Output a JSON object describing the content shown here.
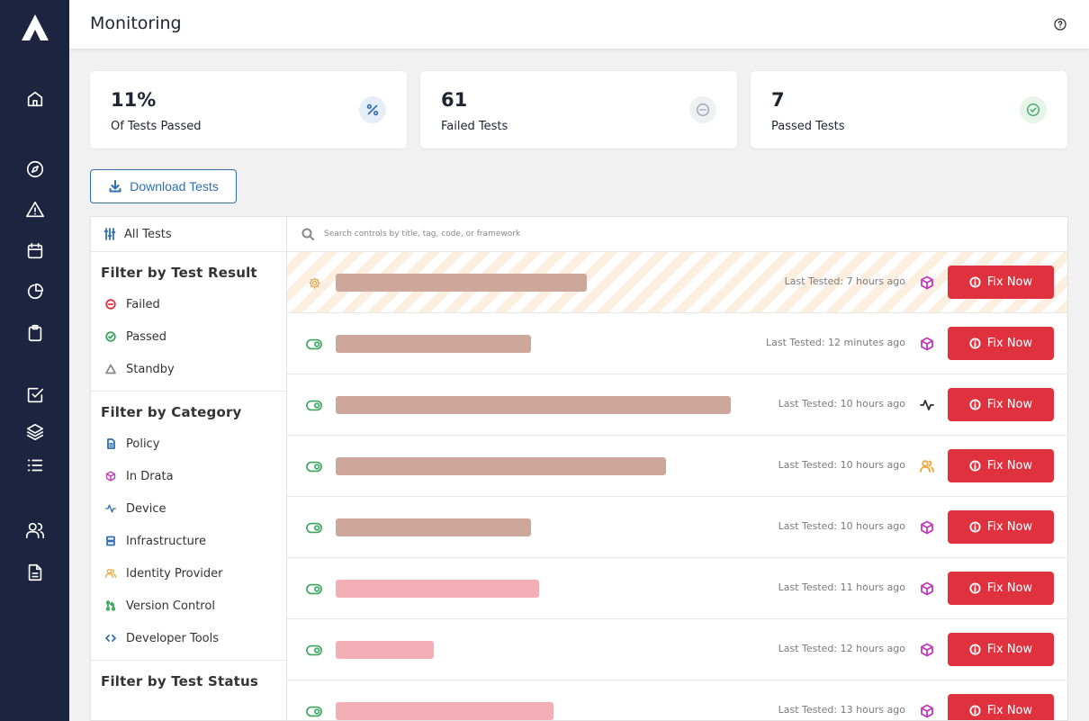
{
  "header": {
    "title": "Monitoring",
    "help_icon": "help-circle-icon"
  },
  "sidebar": {
    "logo": "drata-logo",
    "items": [
      {
        "icon": "home-icon"
      },
      {
        "icon": "compass-icon"
      },
      {
        "icon": "alert-triangle-icon"
      },
      {
        "icon": "calendar-icon"
      },
      {
        "icon": "pie-chart-icon"
      },
      {
        "icon": "clipboard-icon"
      },
      {
        "icon": "check-square-icon"
      },
      {
        "icon": "layers-icon"
      },
      {
        "icon": "list-icon"
      },
      {
        "icon": "users-icon"
      },
      {
        "icon": "file-text-icon"
      }
    ]
  },
  "stats": [
    {
      "value": "11%",
      "label": "Of Tests Passed",
      "icon": "percent-icon",
      "color": "#2e6fb0"
    },
    {
      "value": "61",
      "label": "Failed Tests",
      "icon": "minus-circle-icon",
      "color": "#9aa3b0"
    },
    {
      "value": "7",
      "label": "Passed Tests",
      "icon": "check-circle-icon",
      "color": "#3ba55c"
    }
  ],
  "download_label": "Download Tests",
  "filters": {
    "all_tests": "All Tests",
    "groups": [
      {
        "title": "Filter by Test Result",
        "items": [
          {
            "label": "Failed",
            "icon": "minus-circle-icon",
            "color": "#e0313f"
          },
          {
            "label": "Passed",
            "icon": "check-circle-icon",
            "color": "#3ba55c"
          },
          {
            "label": "Standby",
            "icon": "triangle-icon",
            "color": "#888888"
          }
        ]
      },
      {
        "title": "Filter by Category",
        "items": [
          {
            "label": "Policy",
            "icon": "file-icon",
            "color": "#2e6fb0"
          },
          {
            "label": "In Drata",
            "icon": "box-icon",
            "color": "#c13ab9"
          },
          {
            "label": "Device",
            "icon": "activity-icon",
            "color": "#2e6fb0"
          },
          {
            "label": "Infrastructure",
            "icon": "server-icon",
            "color": "#2e6fb0"
          },
          {
            "label": "Identity Provider",
            "icon": "users-icon",
            "color": "#f0a63a"
          },
          {
            "label": "Version Control",
            "icon": "git-pull-request-icon",
            "color": "#3ba55c"
          },
          {
            "label": "Developer Tools",
            "icon": "code-icon",
            "color": "#2e6fb0"
          }
        ]
      },
      {
        "title": "Filter by Test Status",
        "items": []
      }
    ]
  },
  "search": {
    "placeholder": "Search controls by title, tag, code, or framework"
  },
  "rows": [
    {
      "status_icon": "gear-icon",
      "status_color": "#f0a63a",
      "bar_color": "#cda89a",
      "bar_fraction": 0.322,
      "last_tested": "Last Tested: 7 hours ago",
      "category_icon": "box-icon",
      "category_color": "#c13ab9",
      "fix_label": "Fix Now",
      "striped": true
    },
    {
      "status_icon": "toggle-icon",
      "status_color": "#3ba55c",
      "bar_color": "#cda89a",
      "bar_fraction": 0.25,
      "last_tested": "Last Tested: 12 minutes ago",
      "category_icon": "box-icon",
      "category_color": "#c13ab9",
      "fix_label": "Fix Now",
      "striped": false
    },
    {
      "status_icon": "toggle-icon",
      "status_color": "#3ba55c",
      "bar_color": "#cda89a",
      "bar_fraction": 0.506,
      "last_tested": "Last Tested: 10 hours ago",
      "category_icon": "activity-icon",
      "category_color": "#333333",
      "fix_label": "Fix Now",
      "striped": false
    },
    {
      "status_icon": "toggle-icon",
      "status_color": "#3ba55c",
      "bar_color": "#cda89a",
      "bar_fraction": 0.423,
      "last_tested": "Last Tested: 10 hours ago",
      "category_icon": "users-icon",
      "category_color": "#f0a63a",
      "fix_label": "Fix Now",
      "striped": false
    },
    {
      "status_icon": "toggle-icon",
      "status_color": "#3ba55c",
      "bar_color": "#cda89a",
      "bar_fraction": 0.25,
      "last_tested": "Last Tested: 10 hours ago",
      "category_icon": "box-icon",
      "category_color": "#c13ab9",
      "fix_label": "Fix Now",
      "striped": false
    },
    {
      "status_icon": "toggle-icon",
      "status_color": "#3ba55c",
      "bar_color": "#f4aeb5",
      "bar_fraction": 0.261,
      "last_tested": "Last Tested: 11 hours ago",
      "category_icon": "box-icon",
      "category_color": "#c13ab9",
      "fix_label": "Fix Now",
      "striped": false
    },
    {
      "status_icon": "toggle-icon",
      "status_color": "#3ba55c",
      "bar_color": "#f4aeb5",
      "bar_fraction": 0.126,
      "last_tested": "Last Tested: 12 hours ago",
      "category_icon": "box-icon",
      "category_color": "#c13ab9",
      "fix_label": "Fix Now",
      "striped": false
    },
    {
      "status_icon": "toggle-icon",
      "status_color": "#3ba55c",
      "bar_color": "#f4aeb5",
      "bar_fraction": 0.279,
      "last_tested": "Last Tested: 13 hours ago",
      "category_icon": "box-icon",
      "category_color": "#c13ab9",
      "fix_label": "Fix Now",
      "striped": false
    }
  ]
}
